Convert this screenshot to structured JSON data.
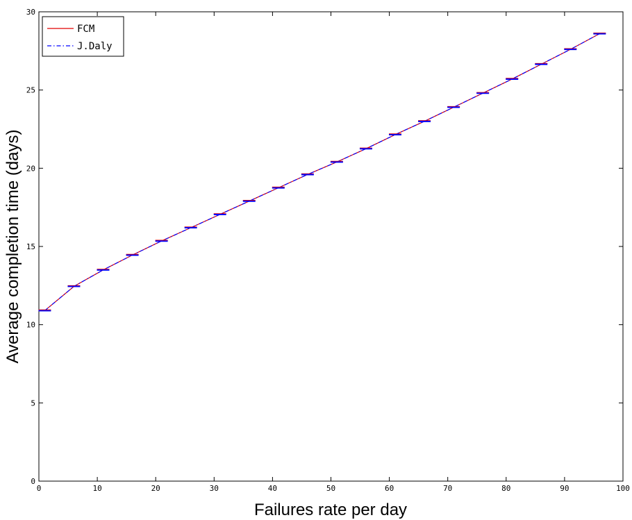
{
  "chart_data": {
    "type": "line",
    "title": "",
    "xlabel": "Failures rate per day",
    "ylabel": "Average completion time (days)",
    "xlim": [
      0,
      100
    ],
    "ylim": [
      0,
      30
    ],
    "xticks": [
      0,
      10,
      20,
      30,
      40,
      50,
      60,
      70,
      80,
      90,
      100
    ],
    "yticks": [
      0,
      5,
      10,
      15,
      20,
      25,
      30
    ],
    "grid": false,
    "legend_position": "top-left",
    "x": [
      1,
      6,
      11,
      16,
      21,
      26,
      31,
      36,
      41,
      46,
      51,
      56,
      61,
      66,
      71,
      76,
      81,
      86,
      91,
      96
    ],
    "series": [
      {
        "name": "FCM",
        "color": "#e00000",
        "line_style": "solid",
        "values": [
          10.9,
          12.45,
          13.5,
          14.45,
          15.35,
          16.2,
          17.05,
          17.9,
          18.75,
          19.6,
          20.4,
          21.25,
          22.15,
          23.0,
          23.9,
          24.8,
          25.7,
          26.65,
          27.6,
          28.6
        ]
      },
      {
        "name": "J.Daly",
        "color": "#0000ff",
        "line_style": "dash-dot",
        "values": [
          10.9,
          12.45,
          13.5,
          14.45,
          15.35,
          16.2,
          17.05,
          17.9,
          18.75,
          19.6,
          20.4,
          21.25,
          22.15,
          23.0,
          23.9,
          24.8,
          25.7,
          26.65,
          27.6,
          28.6
        ]
      }
    ],
    "markers": {
      "style": "short horizontal bar",
      "color": "#0000ff",
      "accent_color": "#e00000"
    }
  }
}
